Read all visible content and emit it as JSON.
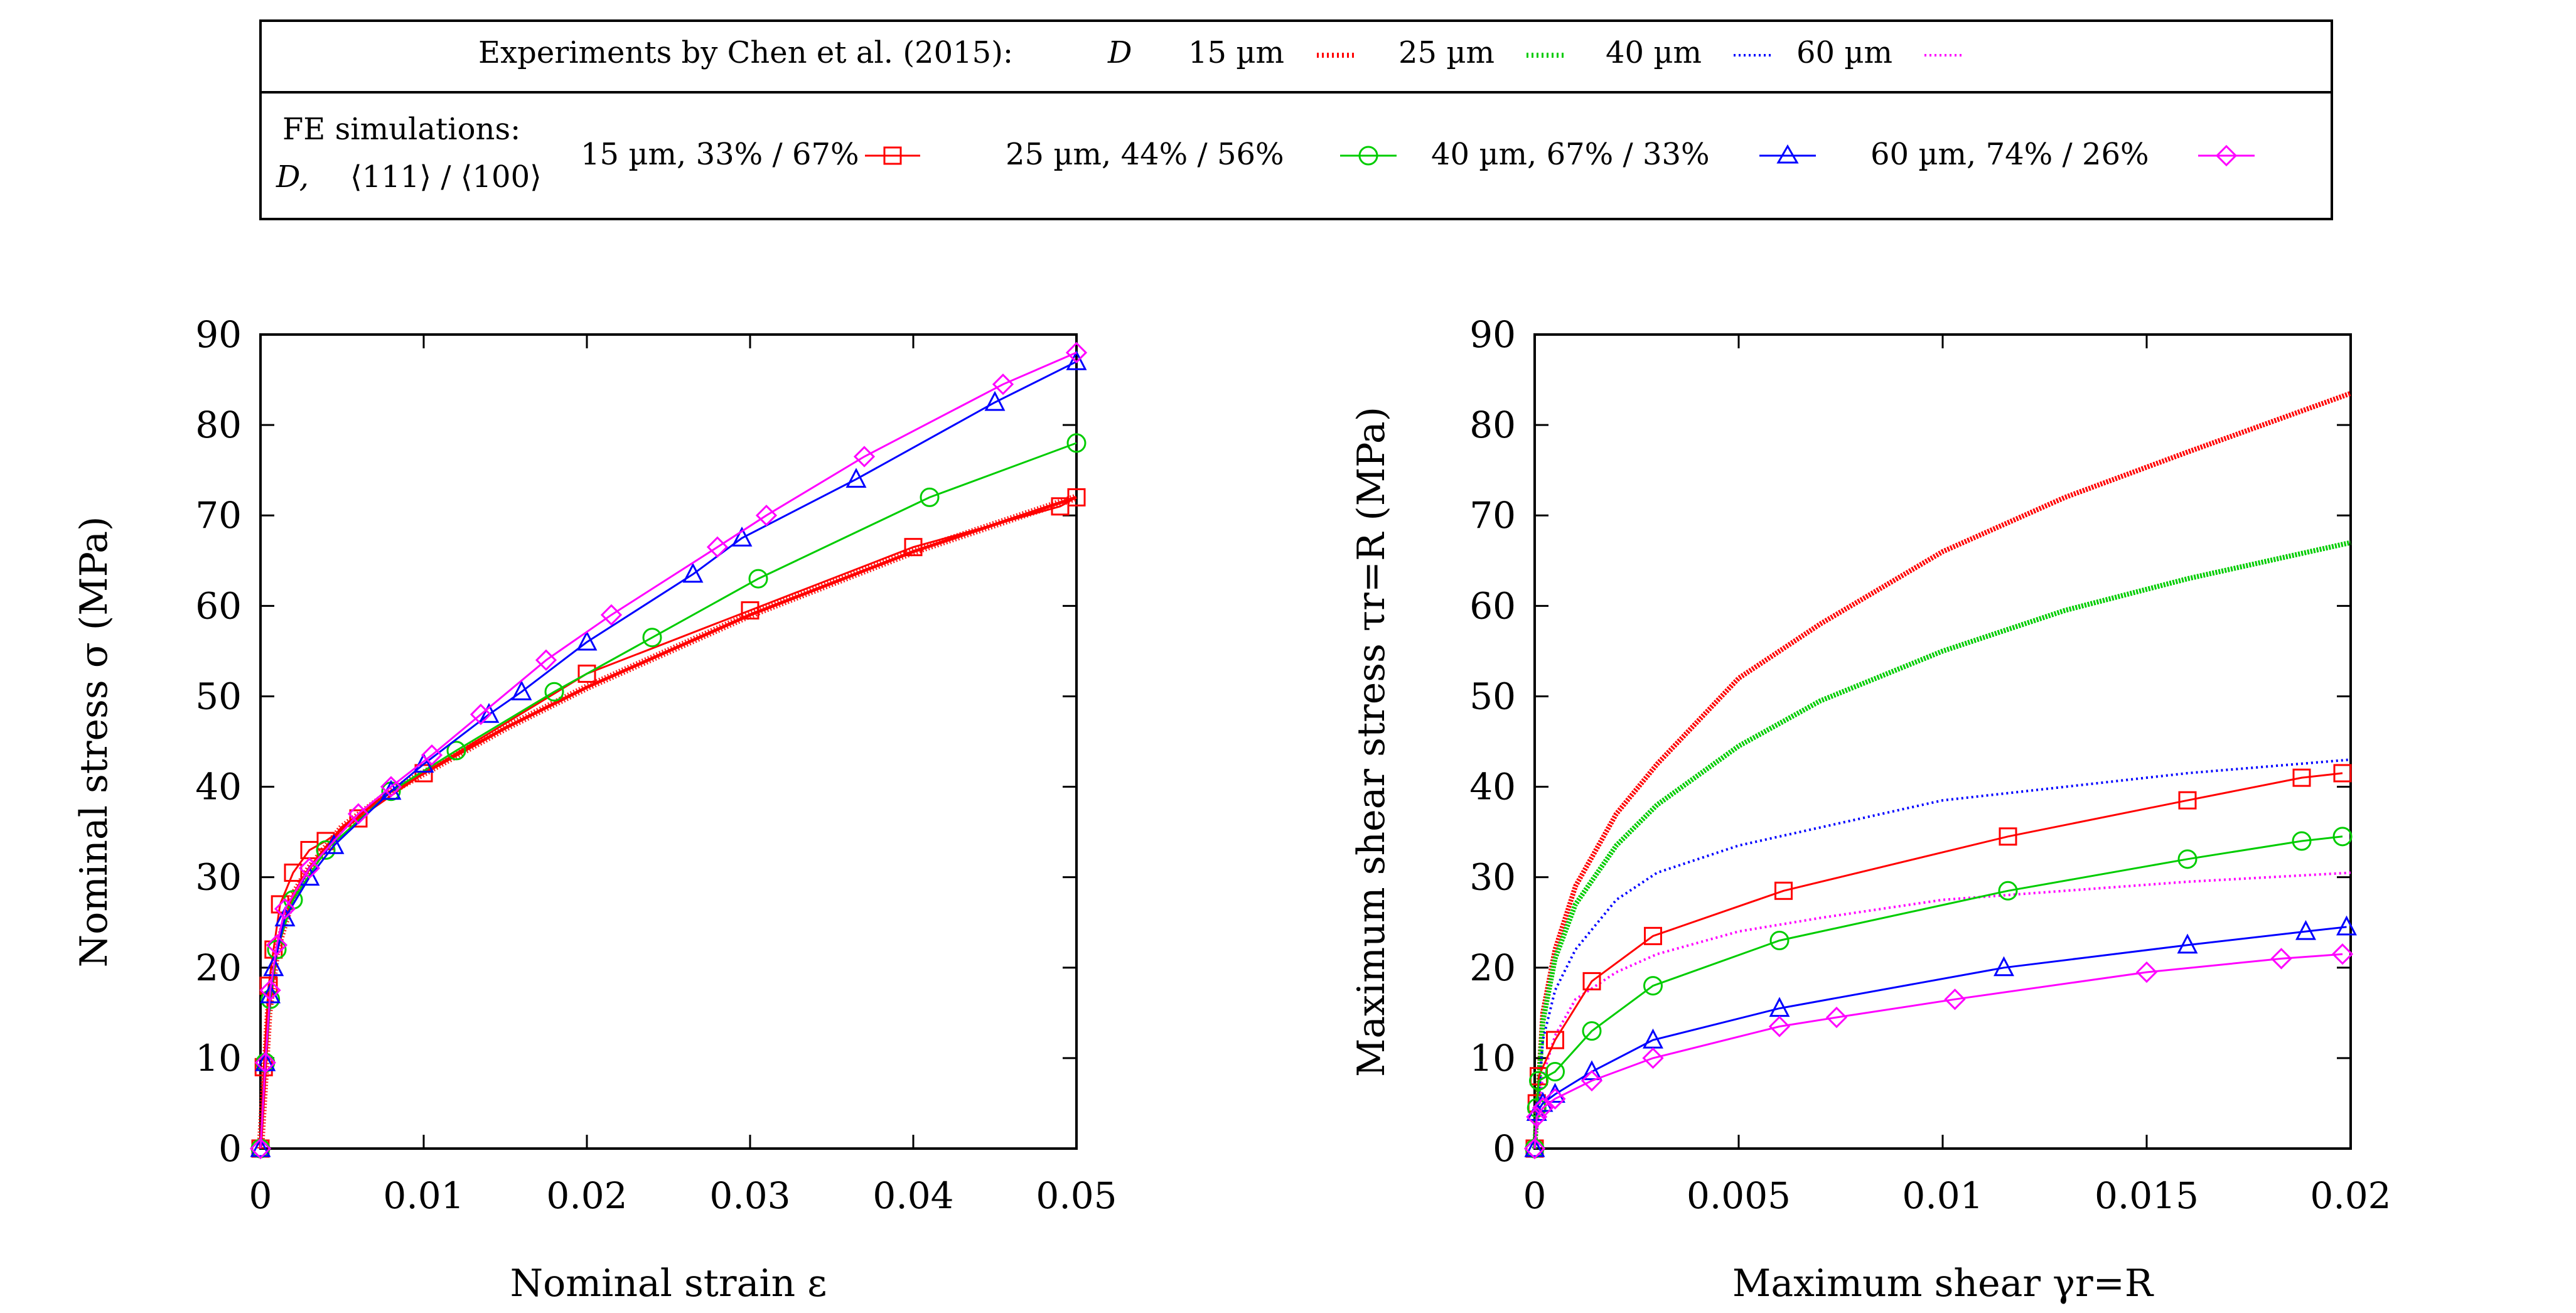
{
  "legend": {
    "experiments": {
      "title": "Experiments by Chen et al. (2015):",
      "symbol": "D",
      "entries": [
        {
          "label": "15 µm",
          "color": "#ff0000"
        },
        {
          "label": "25 µm",
          "color": "#00cc00"
        },
        {
          "label": "40 µm",
          "color": "#0000ff"
        },
        {
          "label": "60 µm",
          "color": "#ff00ff"
        }
      ]
    },
    "simulations": {
      "title_line1": "FE simulations:",
      "title_line2_symbol": "D,",
      "title_line2_texture": "⟨111⟩ / ⟨100⟩",
      "entries": [
        {
          "label": "15 µm, 33% / 67%",
          "color": "#ff0000",
          "marker": "square"
        },
        {
          "label": "25 µm, 44% / 56%",
          "color": "#00cc00",
          "marker": "circle"
        },
        {
          "label": "40 µm, 67% / 33%",
          "color": "#0000ff",
          "marker": "triangle"
        },
        {
          "label": "60 µm, 74% / 26%",
          "color": "#ff00ff",
          "marker": "diamond"
        }
      ]
    }
  },
  "chart_data": [
    {
      "type": "line",
      "title": "",
      "xlabel": "Nominal strain ε",
      "ylabel": "Nominal stress σ (MPa)",
      "xlim": [
        0,
        0.05
      ],
      "ylim": [
        0,
        90
      ],
      "xticks": [
        "0",
        "0.01",
        "0.02",
        "0.03",
        "0.04",
        "0.05"
      ],
      "yticks": [
        "0",
        "10",
        "20",
        "30",
        "40",
        "50",
        "60",
        "70",
        "80",
        "90"
      ],
      "experiments": [
        {
          "name": "15 µm",
          "color": "#ff0000",
          "x": [
            0,
            0.0005,
            0.001,
            0.002,
            0.003,
            0.005,
            0.008,
            0.01,
            0.015,
            0.02,
            0.025,
            0.03,
            0.035,
            0.04,
            0.045,
            0.05
          ],
          "y": [
            0,
            15,
            22,
            28,
            31,
            35.5,
            39.5,
            41.5,
            46.5,
            51,
            55,
            59,
            62.5,
            66,
            69,
            72
          ]
        }
      ],
      "simulations": [
        {
          "name": "15 µm, 33% / 67%",
          "color": "#ff0000",
          "marker": "square",
          "x": [
            0,
            0.0002,
            0.0005,
            0.0008,
            0.0012,
            0.002,
            0.003,
            0.004,
            0.006,
            0.01,
            0.02,
            0.03,
            0.04,
            0.049,
            0.05
          ],
          "y": [
            0,
            9,
            18,
            22,
            27,
            30.5,
            33,
            34,
            36.5,
            41.5,
            52.5,
            59.5,
            66.5,
            71,
            72
          ]
        },
        {
          "name": "25 µm, 44% / 56%",
          "color": "#00cc00",
          "marker": "circle",
          "x": [
            0,
            0.0003,
            0.0006,
            0.001,
            0.002,
            0.004,
            0.008,
            0.012,
            0.018,
            0.024,
            0.0305,
            0.041,
            0.05
          ],
          "y": [
            0,
            9.5,
            16.5,
            22,
            27.5,
            33,
            39.5,
            44,
            50.5,
            56.5,
            63,
            72,
            78
          ]
        },
        {
          "name": "40 µm, 67% / 33%",
          "color": "#0000ff",
          "marker": "triangle",
          "x": [
            0,
            0.0003,
            0.0006,
            0.0008,
            0.0015,
            0.003,
            0.0045,
            0.008,
            0.01,
            0.014,
            0.016,
            0.02,
            0.0265,
            0.0295,
            0.0365,
            0.045,
            0.05
          ],
          "y": [
            0,
            9.5,
            17,
            20,
            25.5,
            30,
            33.5,
            39.5,
            42.5,
            48,
            50.5,
            56,
            63.5,
            67.5,
            74,
            82.5,
            87
          ]
        },
        {
          "name": "60 µm, 74% / 26%",
          "color": "#ff00ff",
          "marker": "diamond",
          "x": [
            0,
            0.0003,
            0.0006,
            0.001,
            0.0015,
            0.003,
            0.006,
            0.008,
            0.0105,
            0.0135,
            0.0175,
            0.0215,
            0.028,
            0.031,
            0.037,
            0.0455,
            0.05
          ],
          "y": [
            0,
            9.5,
            17.5,
            22.5,
            26.5,
            31,
            37,
            40,
            43.5,
            48,
            54,
            59,
            66.5,
            70,
            76.5,
            84.5,
            88
          ]
        }
      ]
    },
    {
      "type": "line",
      "title": "",
      "xlabel": "Maximum shear γr=R",
      "ylabel": "Maximum shear stress τr=R (MPa)",
      "xlim": [
        0,
        0.02
      ],
      "ylim": [
        0,
        90
      ],
      "xticks": [
        "0",
        "0.005",
        "0.01",
        "0.015",
        "0.02"
      ],
      "yticks": [
        "0",
        "10",
        "20",
        "30",
        "40",
        "50",
        "60",
        "70",
        "80",
        "90"
      ],
      "experiments": [
        {
          "name": "15 µm",
          "color": "#ff0000",
          "x": [
            0,
            0.0002,
            0.0005,
            0.001,
            0.002,
            0.003,
            0.005,
            0.007,
            0.01,
            0.013,
            0.016,
            0.02
          ],
          "y": [
            0,
            15,
            22,
            29,
            37,
            42.5,
            52,
            58,
            66,
            72,
            77,
            83.5
          ]
        },
        {
          "name": "25 µm",
          "color": "#00cc00",
          "x": [
            0,
            0.0002,
            0.0005,
            0.001,
            0.002,
            0.003,
            0.005,
            0.007,
            0.01,
            0.013,
            0.016,
            0.02
          ],
          "y": [
            0,
            14,
            21,
            27,
            33.5,
            38,
            44.5,
            49.5,
            55,
            59.5,
            63,
            67
          ]
        },
        {
          "name": "40 µm",
          "color": "#0000ff",
          "x": [
            0,
            0.0002,
            0.0005,
            0.001,
            0.002,
            0.003,
            0.005,
            0.007,
            0.01,
            0.013,
            0.016,
            0.02
          ],
          "y": [
            0,
            12,
            17.5,
            22,
            27.5,
            30.5,
            33.5,
            35.5,
            38.5,
            40,
            41.5,
            43
          ]
        },
        {
          "name": "60 µm",
          "color": "#ff00ff",
          "x": [
            0,
            0.0002,
            0.0005,
            0.001,
            0.002,
            0.003,
            0.005,
            0.007,
            0.01,
            0.013,
            0.016,
            0.02
          ],
          "y": [
            0,
            8,
            12.5,
            16.5,
            19.5,
            21.5,
            24,
            25.5,
            27.5,
            28.5,
            29.5,
            30.5
          ]
        }
      ],
      "simulations": [
        {
          "name": "15 µm, 33% / 67%",
          "color": "#ff0000",
          "marker": "square",
          "x": [
            0,
            5e-05,
            0.0001,
            0.0005,
            0.0014,
            0.0029,
            0.0061,
            0.0116,
            0.016,
            0.0188,
            0.0198
          ],
          "y": [
            0,
            5,
            8,
            12,
            18.5,
            23.5,
            28.5,
            34.5,
            38.5,
            41,
            41.5
          ]
        },
        {
          "name": "25 µm, 44% / 56%",
          "color": "#00cc00",
          "marker": "circle",
          "x": [
            0,
            5e-05,
            0.0001,
            0.0005,
            0.0014,
            0.0029,
            0.006,
            0.0116,
            0.016,
            0.0188,
            0.0198
          ],
          "y": [
            0,
            4.5,
            7.5,
            8.5,
            13,
            18,
            23,
            28.5,
            32,
            34,
            34.5
          ]
        },
        {
          "name": "40 µm, 67% / 33%",
          "color": "#0000ff",
          "marker": "triangle",
          "x": [
            0,
            5e-05,
            0.0002,
            0.0005,
            0.0014,
            0.0029,
            0.006,
            0.0115,
            0.016,
            0.0189,
            0.0199
          ],
          "y": [
            0,
            4,
            5,
            6,
            8.5,
            12,
            15.5,
            20,
            22.5,
            24,
            24.5
          ]
        },
        {
          "name": "60 µm, 74% / 26%",
          "color": "#ff00ff",
          "marker": "diamond",
          "x": [
            0,
            5e-05,
            0.0002,
            0.0005,
            0.0014,
            0.0029,
            0.006,
            0.0074,
            0.0103,
            0.015,
            0.0183,
            0.0198
          ],
          "y": [
            0,
            3.5,
            4.5,
            5.5,
            7.5,
            10,
            13.5,
            14.5,
            16.5,
            19.5,
            21,
            21.5
          ]
        }
      ]
    }
  ]
}
